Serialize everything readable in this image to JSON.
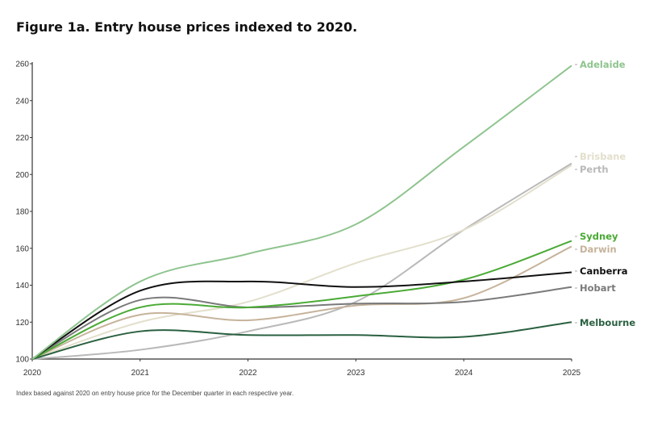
{
  "chart_data": {
    "type": "line",
    "title": "Figure 1a.  Entry house prices indexed to 2020.",
    "note": "Index based against 2020 on entry house price for the December quarter in each respective year.",
    "x": [
      2020,
      2021,
      2022,
      2023,
      2024,
      2025
    ],
    "xlim": [
      2020,
      2025
    ],
    "ylim": [
      100,
      260
    ],
    "yticks": [
      100,
      120,
      140,
      160,
      180,
      200,
      220,
      240,
      260
    ],
    "grid": false,
    "legend": "direct labels at right end",
    "series": [
      {
        "name": "Adelaide",
        "color": "#8fc48f",
        "values": [
          100,
          142,
          157,
          173,
          215,
          259
        ]
      },
      {
        "name": "Brisbane",
        "color": "#e2dfcc",
        "values": [
          100,
          120,
          131,
          152,
          170,
          205
        ]
      },
      {
        "name": "Perth",
        "color": "#b9b9b9",
        "values": [
          100,
          105,
          115,
          131,
          170,
          206
        ]
      },
      {
        "name": "Sydney",
        "color": "#4aaa35",
        "values": [
          100,
          128,
          128,
          134,
          143,
          164
        ]
      },
      {
        "name": "Darwin",
        "color": "#c6b39b",
        "values": [
          100,
          124,
          121,
          129,
          133,
          161
        ]
      },
      {
        "name": "Canberra",
        "color": "#111111",
        "values": [
          100,
          137,
          142,
          139,
          142,
          147
        ]
      },
      {
        "name": "Hobart",
        "color": "#7a7a7a",
        "values": [
          100,
          132,
          128,
          130,
          131,
          139
        ]
      },
      {
        "name": "Melbourne",
        "color": "#2a6040",
        "values": [
          100,
          115,
          113,
          113,
          112,
          120
        ]
      }
    ]
  }
}
